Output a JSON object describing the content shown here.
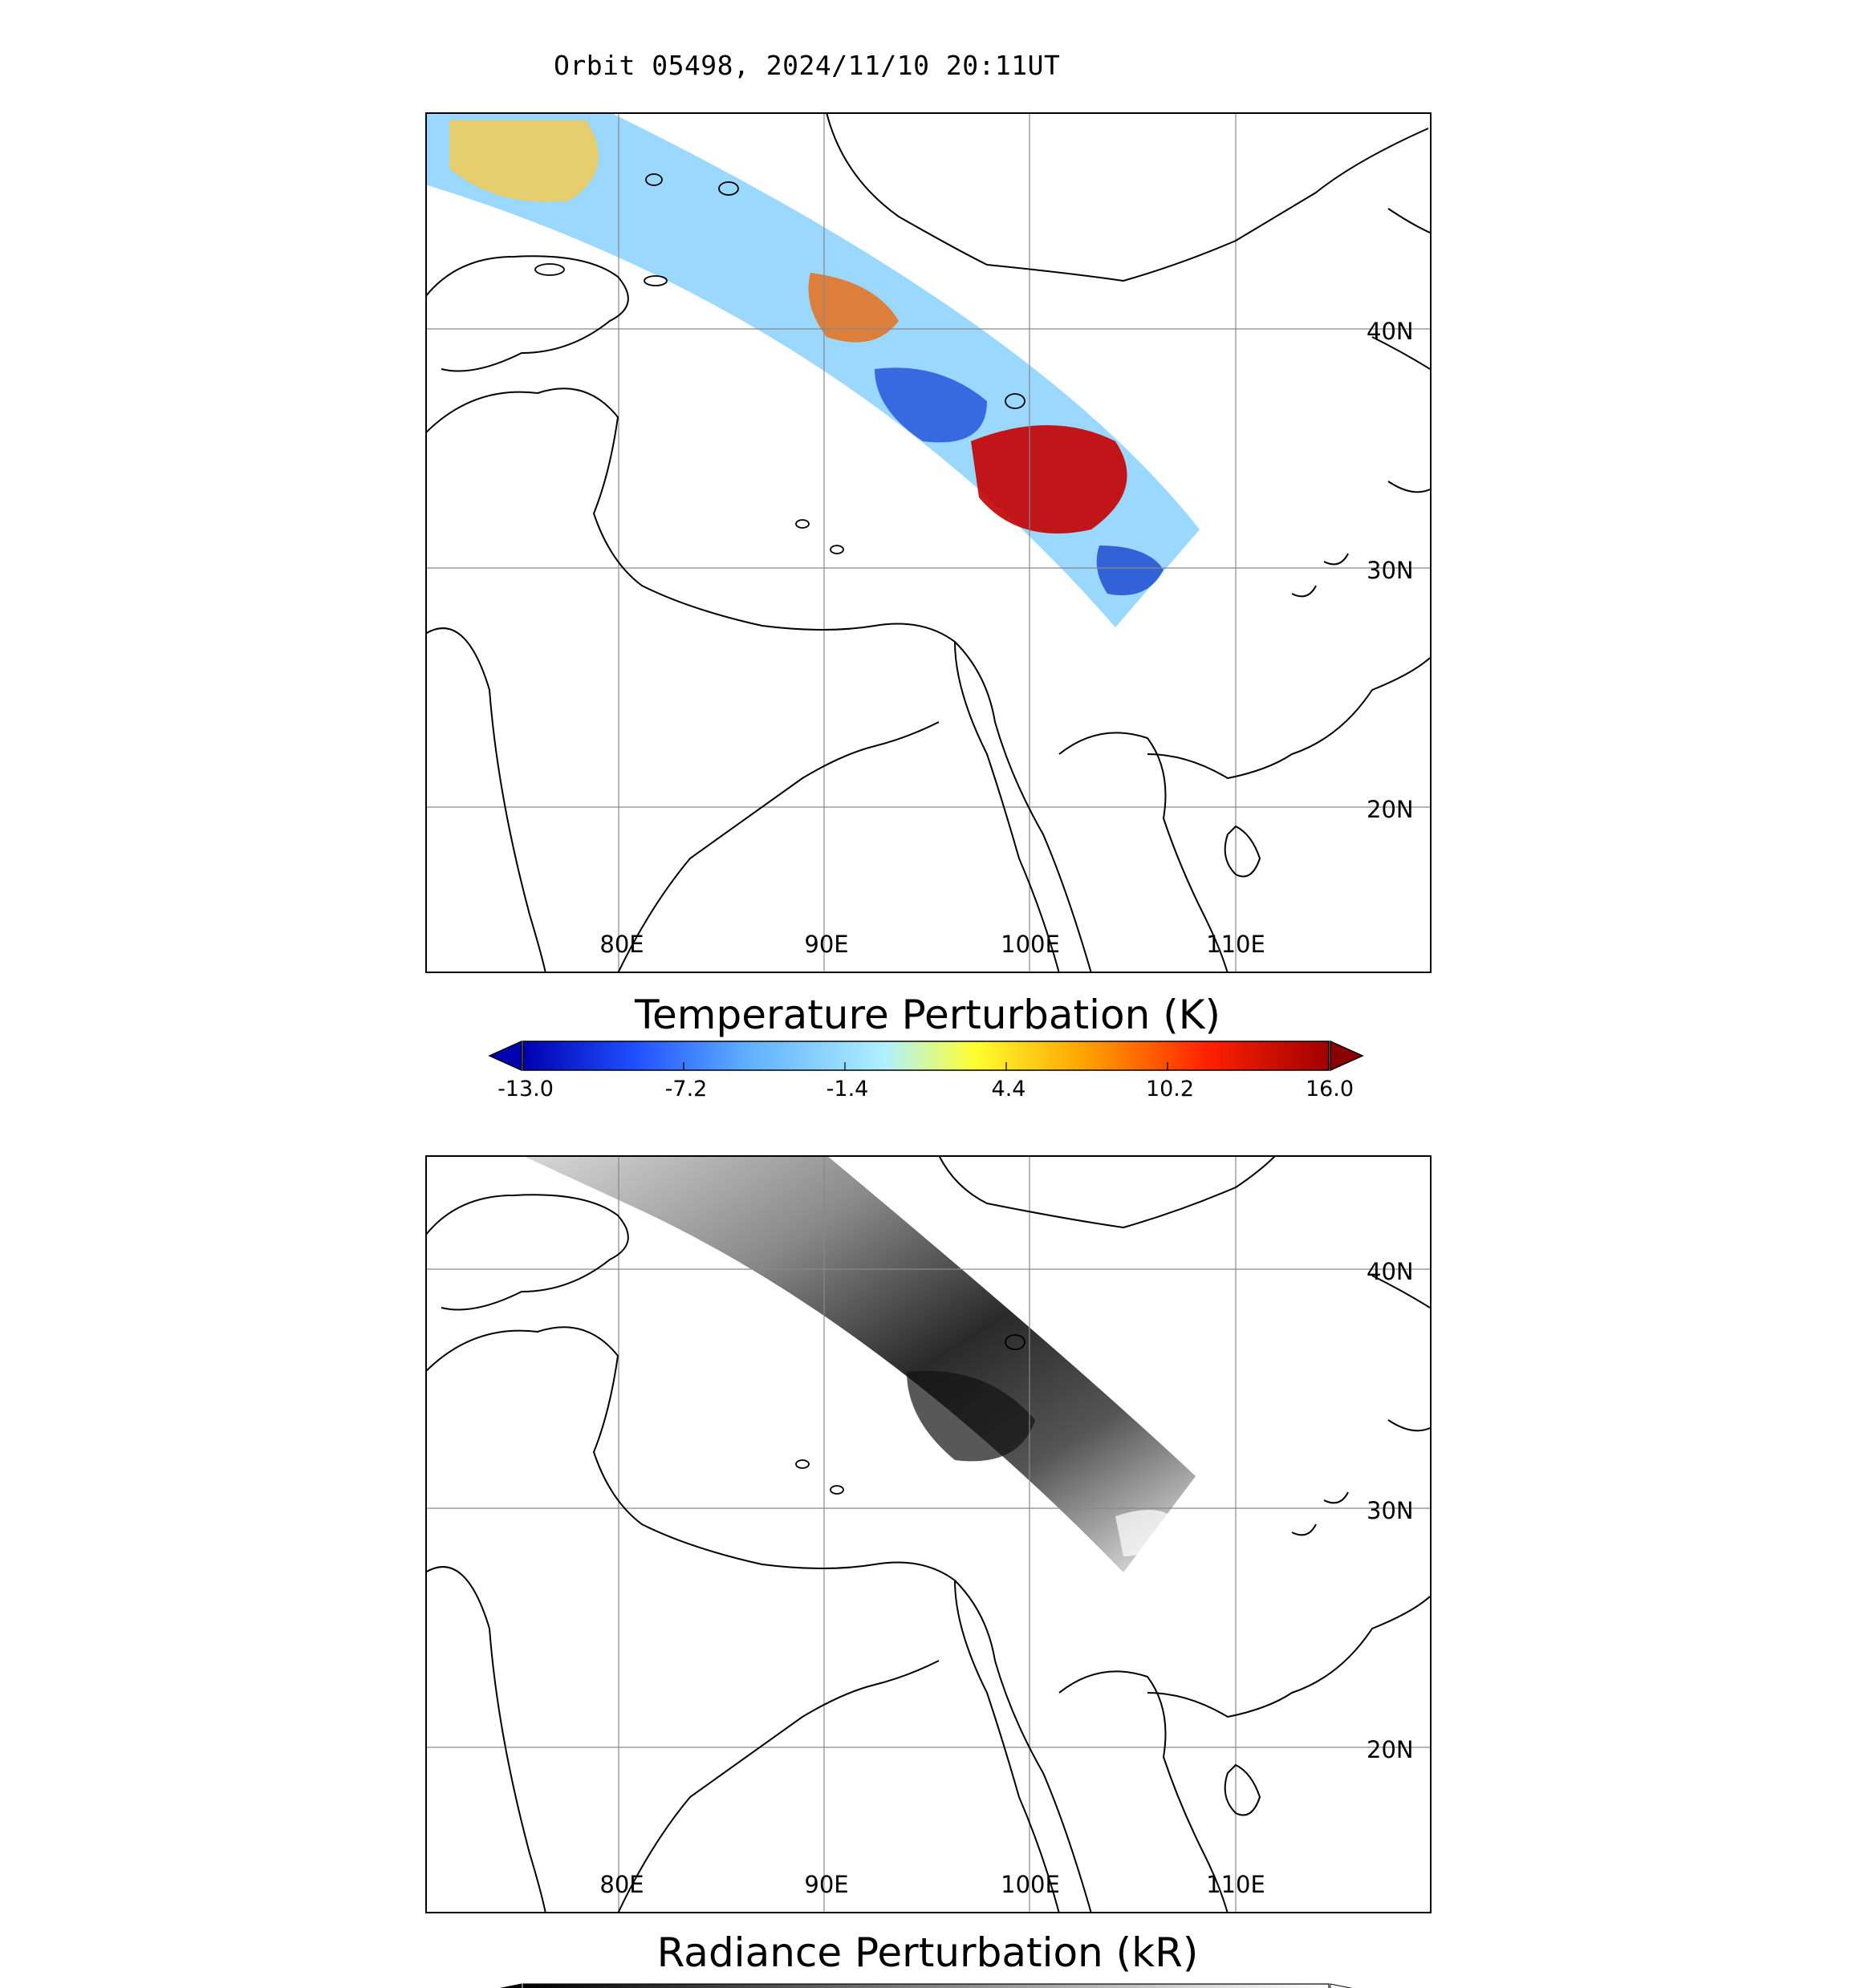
{
  "title": "Orbit 05498, 2024/11/10 20:11UT",
  "panel_top": {
    "lon_labels": [
      "80E",
      "90E",
      "100E",
      "110E"
    ],
    "lat_labels": [
      "40N",
      "30N",
      "20N"
    ],
    "colorbar_title": "Temperature Perturbation (K)",
    "colorbar_ticks": [
      "-13.0",
      "-7.2",
      "-1.4",
      "4.4",
      "10.2",
      "16.0"
    ],
    "colorbar_colors": [
      "#0000b0",
      "#2050ff",
      "#60b0ff",
      "#b0f0ff",
      "#ffff30",
      "#ffa000",
      "#ff2000",
      "#a00000"
    ],
    "extend_low_color": "#0000b0",
    "extend_high_color": "#8b0000"
  },
  "panel_bottom": {
    "lon_labels": [
      "80E",
      "90E",
      "100E",
      "110E"
    ],
    "lat_labels": [
      "40N",
      "30N",
      "20N"
    ],
    "colorbar_title": "Radiance Perturbation (kR)"
  }
}
